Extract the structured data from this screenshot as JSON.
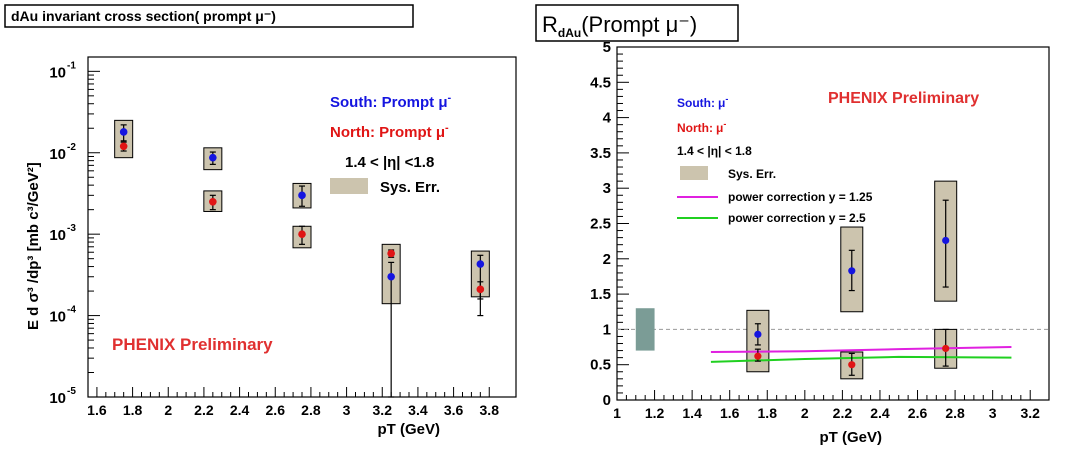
{
  "chart_data": [
    {
      "type": "scatter",
      "title": "dAu invariant cross section( prompt  μ⁻)",
      "xlabel": "pT (GeV)",
      "ylabel": "E d σ³ /dp³ [mb c³/GeV²]",
      "xlim": [
        1.55,
        3.95
      ],
      "ylim": [
        1e-05,
        0.15
      ],
      "yscale": "log",
      "xticks": [
        1.6,
        1.8,
        2,
        2.2,
        2.4,
        2.6,
        2.8,
        3,
        3.2,
        3.4,
        3.6,
        3.8
      ],
      "xtick_labels": [
        "1.6",
        "1.8",
        "2",
        "2.2",
        "2.4",
        "2.6",
        "2.8",
        "3",
        "3.2",
        "3.4",
        "3.6",
        "3.8"
      ],
      "yticks": [
        0.1,
        0.01,
        0.001,
        0.0001,
        1e-05
      ],
      "ytick_labels": [
        "10",
        "10",
        "10",
        "10",
        "10"
      ],
      "ytick_exponents": [
        "-1",
        "-2",
        "-3",
        "-4",
        "-5"
      ],
      "annotation": "PHENIX Preliminary",
      "eta_range": "1.4 < |η| <1.8",
      "legend": {
        "south": "South: Prompt  μ",
        "north": "North: Prompt  μ",
        "sup": "-",
        "sys": "Sys. Err."
      },
      "sys_boxes": [
        {
          "x": 1.75,
          "low": 0.0087,
          "high": 0.025
        },
        {
          "x": 2.25,
          "low": 0.0062,
          "high": 0.0115
        },
        {
          "x": 2.25,
          "low": 0.0019,
          "high": 0.0034
        },
        {
          "x": 2.75,
          "low": 0.0021,
          "high": 0.0042
        },
        {
          "x": 2.75,
          "low": 0.00068,
          "high": 0.00125
        },
        {
          "x": 3.25,
          "low": 0.00014,
          "high": 0.00075
        },
        {
          "x": 3.75,
          "low": 0.00017,
          "high": 0.00062
        }
      ],
      "series": [
        {
          "name": "South: Prompt  μ⁻",
          "color": "#1515e0",
          "points": [
            {
              "x": 1.75,
              "y": 0.018,
              "lo": 0.014,
              "hi": 0.022
            },
            {
              "x": 2.25,
              "y": 0.0087,
              "lo": 0.0072,
              "hi": 0.0102
            },
            {
              "x": 2.75,
              "y": 0.003,
              "lo": 0.0022,
              "hi": 0.0039
            },
            {
              "x": 3.25,
              "y": 0.0003,
              "lo": 1e-05,
              "hi": 0.00045
            },
            {
              "x": 3.75,
              "y": 0.00043,
              "lo": 0.0001,
              "hi": 0.00055
            }
          ]
        },
        {
          "name": "North: Prompt  μ⁻",
          "color": "#e01515",
          "points": [
            {
              "x": 1.75,
              "y": 0.012,
              "lo": 0.0105,
              "hi": 0.0135
            },
            {
              "x": 2.25,
              "y": 0.0025,
              "lo": 0.002,
              "hi": 0.003
            },
            {
              "x": 2.75,
              "y": 0.001,
              "lo": 0.00075,
              "hi": 0.00125
            },
            {
              "x": 3.25,
              "y": 0.00058,
              "lo": 0.00052,
              "hi": 0.00064
            },
            {
              "x": 3.75,
              "y": 0.00021,
              "lo": 0.00016,
              "hi": 0.00026
            }
          ]
        }
      ]
    },
    {
      "type": "scatter",
      "title": "R",
      "title_sub": "dAu",
      "title_rest": "(Prompt μ⁻)",
      "xlabel": "pT (GeV)",
      "ylabel": "",
      "xlim": [
        1,
        3.3
      ],
      "ylim": [
        0,
        5
      ],
      "xticks": [
        1,
        1.2,
        1.4,
        1.6,
        1.8,
        2,
        2.2,
        2.4,
        2.6,
        2.8,
        3,
        3.2
      ],
      "xtick_labels": [
        "1",
        "1.2",
        "1.4",
        "1.6",
        "1.8",
        "2",
        "2.2",
        "2.4",
        "2.6",
        "2.8",
        "3",
        "3.2"
      ],
      "yticks": [
        0,
        0.5,
        1,
        1.5,
        2,
        2.5,
        3,
        3.5,
        4,
        4.5,
        5
      ],
      "ytick_labels": [
        "0",
        "0.5",
        "1",
        "1.5",
        "2",
        "2.5",
        "3",
        "3.5",
        "4",
        "4.5",
        "5"
      ],
      "annotation": "PHENIX Preliminary",
      "eta_range": "1.4 < |η| < 1.8",
      "legend": {
        "south": "South:",
        "north": "North:",
        "mu": "μ",
        "sup": "-",
        "sys": "Sys. Err.",
        "pc1": "power correction y = 1.25",
        "pc2": "power correction y = 2.5"
      },
      "reference_line": 1,
      "norm_box": {
        "x0": 1.1,
        "x1": 1.2,
        "low": 0.7,
        "high": 1.3,
        "color": "#7b9c96"
      },
      "sys_boxes": [
        {
          "x": 1.75,
          "low": 0.4,
          "high": 1.27
        },
        {
          "x": 2.25,
          "low": 1.25,
          "high": 2.45
        },
        {
          "x": 2.25,
          "low": 0.3,
          "high": 0.68
        },
        {
          "x": 2.75,
          "low": 1.4,
          "high": 3.1
        },
        {
          "x": 2.75,
          "low": 0.45,
          "high": 1.0
        }
      ],
      "series": [
        {
          "name": "South: μ⁻",
          "color": "#1515e0",
          "points": [
            {
              "x": 1.75,
              "y": 0.93,
              "lo": 0.78,
              "hi": 1.08
            },
            {
              "x": 2.25,
              "y": 1.83,
              "lo": 1.55,
              "hi": 2.12
            },
            {
              "x": 2.75,
              "y": 2.26,
              "lo": 1.6,
              "hi": 2.83
            }
          ]
        },
        {
          "name": "North: μ⁻",
          "color": "#e01515",
          "points": [
            {
              "x": 1.75,
              "y": 0.62,
              "lo": 0.55,
              "hi": 0.72
            },
            {
              "x": 2.25,
              "y": 0.5,
              "lo": 0.35,
              "hi": 0.66
            },
            {
              "x": 2.75,
              "y": 0.73,
              "lo": 0.48,
              "hi": 1.0
            }
          ]
        }
      ],
      "curves": [
        {
          "name": "power correction y = 1.25",
          "color": "#e020e0",
          "x": [
            1.5,
            2.0,
            2.5,
            3.1
          ],
          "y": [
            0.68,
            0.69,
            0.72,
            0.75
          ]
        },
        {
          "name": "power correction y = 2.5",
          "color": "#20d020",
          "x": [
            1.5,
            2.0,
            2.5,
            3.1
          ],
          "y": [
            0.54,
            0.58,
            0.61,
            0.6
          ]
        }
      ]
    }
  ]
}
